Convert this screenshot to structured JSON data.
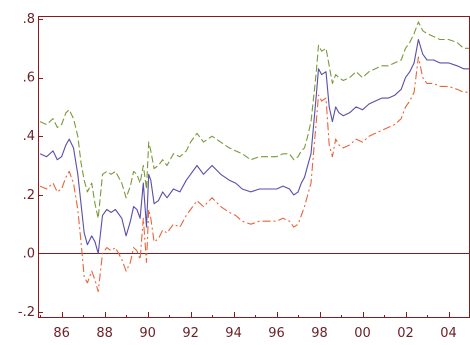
{
  "chart_data": {
    "type": "line",
    "title": "",
    "xlabel": "",
    "ylabel": "",
    "xlim": [
      1984.9,
      2005.0
    ],
    "ylim": [
      -0.22,
      0.81
    ],
    "grid": false,
    "zero_line": true,
    "y_ticks": [
      {
        "value": 0.8,
        "label": ".8"
      },
      {
        "value": 0.6,
        "label": ".6"
      },
      {
        "value": 0.4,
        "label": ".4"
      },
      {
        "value": 0.2,
        "label": ".2"
      },
      {
        "value": 0.0,
        "label": ".0"
      },
      {
        "value": -0.2,
        "label": "-.2"
      }
    ],
    "x_ticks": [
      {
        "value": 1986,
        "label": "86"
      },
      {
        "value": 1988,
        "label": "88"
      },
      {
        "value": 1990,
        "label": "90"
      },
      {
        "value": 1992,
        "label": "92"
      },
      {
        "value": 1994,
        "label": "94"
      },
      {
        "value": 1996,
        "label": "96"
      },
      {
        "value": 1998,
        "label": "98"
      },
      {
        "value": 2000,
        "label": "00"
      },
      {
        "value": 2002,
        "label": "02"
      },
      {
        "value": 2004,
        "label": "04"
      }
    ],
    "colors": {
      "frame": "#8b1a1a",
      "upper": "#7a9a3a",
      "middle": "#5a4ea8",
      "lower": "#e8643a"
    },
    "series": [
      {
        "key": "upper",
        "dash": "dashed",
        "x": [
          1985.0,
          1985.3,
          1985.6,
          1985.8,
          1986.0,
          1986.2,
          1986.35,
          1986.55,
          1986.75,
          1986.9,
          1987.05,
          1987.2,
          1987.4,
          1987.55,
          1987.7,
          1987.9,
          1988.1,
          1988.3,
          1988.5,
          1988.8,
          1989.0,
          1989.2,
          1989.35,
          1989.5,
          1989.65,
          1989.8,
          1989.95,
          1990.05,
          1990.15,
          1990.3,
          1990.5,
          1990.7,
          1990.9,
          1991.2,
          1991.5,
          1991.8,
          1992.0,
          1992.3,
          1992.6,
          1993.0,
          1993.4,
          1993.8,
          1994.1,
          1994.4,
          1994.8,
          1995.2,
          1995.6,
          1996.0,
          1996.3,
          1996.6,
          1996.8,
          1997.0,
          1997.15,
          1997.3,
          1997.45,
          1997.6,
          1997.75,
          1997.85,
          1997.95,
          1998.1,
          1998.3,
          1998.45,
          1998.6,
          1998.75,
          1998.9,
          1999.1,
          1999.4,
          1999.7,
          2000.0,
          2000.3,
          2000.6,
          2000.9,
          2001.2,
          2001.5,
          2001.8,
          2002.0,
          2002.2,
          2002.4,
          2002.6,
          2002.8,
          2003.0,
          2003.3,
          2003.6,
          2004.0,
          2004.4,
          2004.7,
          2005.0
        ],
        "y": [
          0.45,
          0.44,
          0.46,
          0.43,
          0.44,
          0.48,
          0.49,
          0.46,
          0.4,
          0.31,
          0.25,
          0.21,
          0.24,
          0.17,
          0.12,
          0.27,
          0.28,
          0.27,
          0.28,
          0.24,
          0.19,
          0.23,
          0.28,
          0.27,
          0.24,
          0.3,
          0.22,
          0.38,
          0.35,
          0.29,
          0.3,
          0.32,
          0.3,
          0.34,
          0.33,
          0.35,
          0.38,
          0.41,
          0.38,
          0.4,
          0.38,
          0.36,
          0.35,
          0.34,
          0.32,
          0.33,
          0.33,
          0.33,
          0.34,
          0.34,
          0.32,
          0.33,
          0.35,
          0.36,
          0.4,
          0.45,
          0.55,
          0.62,
          0.71,
          0.69,
          0.7,
          0.64,
          0.58,
          0.61,
          0.6,
          0.59,
          0.6,
          0.62,
          0.6,
          0.62,
          0.63,
          0.64,
          0.64,
          0.65,
          0.66,
          0.7,
          0.72,
          0.75,
          0.79,
          0.76,
          0.75,
          0.74,
          0.73,
          0.73,
          0.72,
          0.7,
          0.7
        ]
      },
      {
        "key": "middle",
        "dash": "solid",
        "x": [
          1985.0,
          1985.3,
          1985.6,
          1985.8,
          1986.0,
          1986.2,
          1986.35,
          1986.55,
          1986.75,
          1986.9,
          1987.05,
          1987.2,
          1987.4,
          1987.55,
          1987.7,
          1987.9,
          1988.1,
          1988.3,
          1988.5,
          1988.8,
          1989.0,
          1989.2,
          1989.35,
          1989.5,
          1989.65,
          1989.8,
          1989.95,
          1990.05,
          1990.15,
          1990.3,
          1990.5,
          1990.7,
          1990.9,
          1991.2,
          1991.5,
          1991.8,
          1992.0,
          1992.3,
          1992.6,
          1993.0,
          1993.4,
          1993.8,
          1994.1,
          1994.4,
          1994.8,
          1995.2,
          1995.6,
          1996.0,
          1996.3,
          1996.6,
          1996.8,
          1997.0,
          1997.15,
          1997.3,
          1997.45,
          1997.6,
          1997.75,
          1997.85,
          1997.95,
          1998.1,
          1998.3,
          1998.45,
          1998.6,
          1998.75,
          1998.9,
          1999.1,
          1999.4,
          1999.7,
          2000.0,
          2000.3,
          2000.6,
          2000.9,
          2001.2,
          2001.5,
          2001.8,
          2002.0,
          2002.2,
          2002.4,
          2002.6,
          2002.8,
          2003.0,
          2003.3,
          2003.6,
          2004.0,
          2004.4,
          2004.7,
          2005.0
        ],
        "y": [
          0.34,
          0.33,
          0.35,
          0.32,
          0.33,
          0.37,
          0.39,
          0.36,
          0.27,
          0.17,
          0.07,
          0.03,
          0.06,
          0.04,
          0.0,
          0.13,
          0.15,
          0.14,
          0.15,
          0.12,
          0.06,
          0.11,
          0.16,
          0.15,
          0.12,
          0.24,
          0.09,
          0.27,
          0.25,
          0.17,
          0.18,
          0.21,
          0.19,
          0.22,
          0.21,
          0.25,
          0.27,
          0.3,
          0.27,
          0.3,
          0.27,
          0.25,
          0.24,
          0.22,
          0.21,
          0.22,
          0.22,
          0.22,
          0.23,
          0.22,
          0.2,
          0.21,
          0.24,
          0.26,
          0.3,
          0.34,
          0.46,
          0.54,
          0.63,
          0.61,
          0.62,
          0.5,
          0.45,
          0.5,
          0.48,
          0.47,
          0.48,
          0.5,
          0.49,
          0.51,
          0.52,
          0.53,
          0.53,
          0.54,
          0.56,
          0.6,
          0.62,
          0.65,
          0.73,
          0.68,
          0.66,
          0.66,
          0.65,
          0.65,
          0.64,
          0.63,
          0.63
        ]
      },
      {
        "key": "lower",
        "dash": "dashdot",
        "x": [
          1985.0,
          1985.3,
          1985.6,
          1985.8,
          1986.0,
          1986.2,
          1986.35,
          1986.55,
          1986.75,
          1986.9,
          1987.05,
          1987.2,
          1987.4,
          1987.55,
          1987.7,
          1987.9,
          1988.1,
          1988.3,
          1988.5,
          1988.8,
          1989.0,
          1989.2,
          1989.35,
          1989.5,
          1989.65,
          1989.8,
          1989.95,
          1990.05,
          1990.15,
          1990.3,
          1990.5,
          1990.7,
          1990.9,
          1991.2,
          1991.5,
          1991.8,
          1992.0,
          1992.3,
          1992.6,
          1993.0,
          1993.4,
          1993.8,
          1994.1,
          1994.4,
          1994.8,
          1995.2,
          1995.6,
          1996.0,
          1996.3,
          1996.6,
          1996.8,
          1997.0,
          1997.15,
          1997.3,
          1997.45,
          1997.6,
          1997.75,
          1997.85,
          1997.95,
          1998.1,
          1998.3,
          1998.45,
          1998.6,
          1998.75,
          1998.9,
          1999.1,
          1999.4,
          1999.7,
          2000.0,
          2000.3,
          2000.6,
          2000.9,
          2001.2,
          2001.5,
          2001.8,
          2002.0,
          2002.2,
          2002.4,
          2002.6,
          2002.8,
          2003.0,
          2003.3,
          2003.6,
          2004.0,
          2004.4,
          2004.7,
          2005.0
        ],
        "y": [
          0.23,
          0.22,
          0.24,
          0.21,
          0.22,
          0.26,
          0.28,
          0.24,
          0.15,
          0.04,
          -0.08,
          -0.1,
          -0.06,
          -0.09,
          -0.13,
          0.0,
          0.02,
          0.01,
          0.02,
          -0.02,
          -0.06,
          -0.03,
          0.02,
          0.01,
          -0.02,
          0.12,
          -0.03,
          0.15,
          0.12,
          0.04,
          0.05,
          0.08,
          0.07,
          0.1,
          0.09,
          0.13,
          0.15,
          0.18,
          0.16,
          0.19,
          0.16,
          0.14,
          0.13,
          0.11,
          0.1,
          0.11,
          0.11,
          0.11,
          0.12,
          0.11,
          0.09,
          0.1,
          0.13,
          0.16,
          0.2,
          0.24,
          0.37,
          0.45,
          0.54,
          0.52,
          0.53,
          0.37,
          0.33,
          0.39,
          0.37,
          0.36,
          0.37,
          0.39,
          0.38,
          0.4,
          0.41,
          0.42,
          0.43,
          0.44,
          0.46,
          0.5,
          0.52,
          0.55,
          0.67,
          0.6,
          0.58,
          0.58,
          0.57,
          0.57,
          0.56,
          0.55,
          0.55
        ]
      }
    ]
  }
}
